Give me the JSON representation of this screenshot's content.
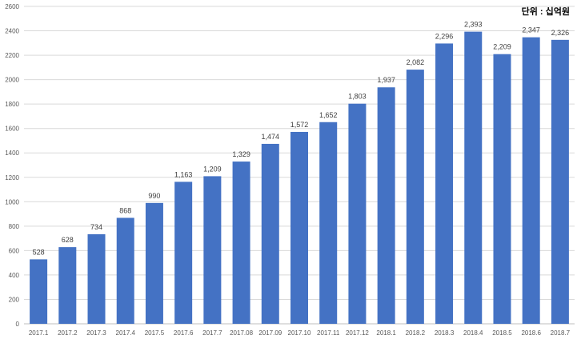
{
  "chart_data": {
    "type": "bar",
    "title": "",
    "unit_label": "단위 : 십억원",
    "xlabel": "",
    "ylabel": "",
    "ylim": [
      0,
      2600
    ],
    "yticks": [
      0,
      200,
      400,
      600,
      800,
      1000,
      1200,
      1400,
      1600,
      1800,
      2000,
      2200,
      2400,
      2600
    ],
    "grid": true,
    "bar_color": "#4472C4",
    "categories": [
      "2017.1",
      "2017.2",
      "2017.3",
      "2017.4",
      "2017.5",
      "2017.6",
      "2017.7",
      "2017.08",
      "2017.09",
      "2017.10",
      "2017.11",
      "2017.12",
      "2018.1",
      "2018.2",
      "2018.3",
      "2018.4",
      "2018.5",
      "2018.6",
      "2018.7"
    ],
    "values": [
      528,
      628,
      734,
      868,
      990,
      1163,
      1209,
      1329,
      1474,
      1572,
      1652,
      1803,
      1937,
      2082,
      2296,
      2393,
      2209,
      2347,
      2326
    ],
    "value_labels": [
      "528",
      "628",
      "734",
      "868",
      "990",
      "1,163",
      "1,209",
      "1,329",
      "1,474",
      "1,572",
      "1,652",
      "1,803",
      "1,937",
      "2,082",
      "2,296",
      "2,393",
      "2,209",
      "2,347",
      "2,326"
    ]
  }
}
